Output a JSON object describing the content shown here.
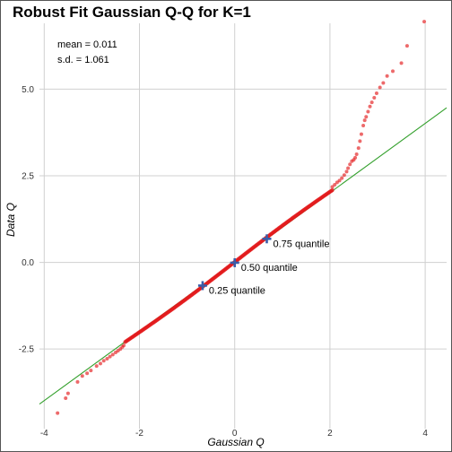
{
  "chart_data": {
    "type": "scatter",
    "title": "Robust Fit Gaussian Q-Q for K=1",
    "xlabel": "Gaussian Q",
    "ylabel": "Data Q",
    "xlim": [
      -4.1,
      4.45
    ],
    "ylim": [
      -4.8,
      6.9
    ],
    "xticks": [
      -4,
      -2,
      0,
      2,
      4
    ],
    "xtick_labels": [
      "-4",
      "-2",
      "0",
      "2",
      "4"
    ],
    "yticks": [
      -2.5,
      0.0,
      2.5,
      5.0
    ],
    "ytick_labels": [
      "-2.5",
      "0.0",
      "2.5",
      "5.0"
    ],
    "grid": true,
    "stats": {
      "mean": "mean = 0.011",
      "sd": "s.d. = 1.061"
    },
    "fit_line": {
      "intercept": 0.011,
      "slope": 1.0,
      "color": "#33a02c"
    },
    "point_color": "#e31a1c",
    "marker_color": "#3a5da8",
    "dense_segment": {
      "x_start": -2.3,
      "x_end": 2.05,
      "n": 220
    },
    "outlier_points": {
      "x": [
        -3.72,
        -3.55,
        -3.5,
        -3.3,
        -3.2,
        -3.1,
        -3.02,
        -2.9,
        -2.82,
        -2.75,
        -2.68,
        -2.62,
        -2.56,
        -2.5,
        -2.45,
        -2.4,
        -2.36,
        -2.33,
        2.05,
        2.1,
        2.15,
        2.2,
        2.25,
        2.3,
        2.35,
        2.38,
        2.42,
        2.46,
        2.5,
        2.53,
        2.56,
        2.6,
        2.63,
        2.66,
        2.7,
        2.73,
        2.76,
        2.8,
        2.84,
        2.88,
        2.93,
        2.98,
        3.05,
        3.12,
        3.2,
        3.32,
        3.5,
        3.62,
        3.98
      ],
      "y": [
        -4.35,
        -3.92,
        -3.78,
        -3.45,
        -3.28,
        -3.2,
        -3.12,
        -2.99,
        -2.92,
        -2.84,
        -2.78,
        -2.72,
        -2.66,
        -2.6,
        -2.55,
        -2.5,
        -2.44,
        -2.4,
        2.18,
        2.24,
        2.31,
        2.36,
        2.43,
        2.52,
        2.62,
        2.72,
        2.83,
        2.92,
        2.96,
        3.02,
        3.12,
        3.3,
        3.5,
        3.7,
        3.95,
        4.1,
        4.2,
        4.35,
        4.5,
        4.62,
        4.75,
        4.88,
        5.05,
        5.18,
        5.38,
        5.52,
        5.75,
        6.25,
        6.95
      ]
    },
    "quantile_markers": [
      {
        "label": "0.25 quantile",
        "x": -0.674,
        "y": -0.67
      },
      {
        "label": "0.50 quantile",
        "x": 0.0,
        "y": -0.01
      },
      {
        "label": "0.75 quantile",
        "x": 0.674,
        "y": 0.68
      }
    ]
  }
}
